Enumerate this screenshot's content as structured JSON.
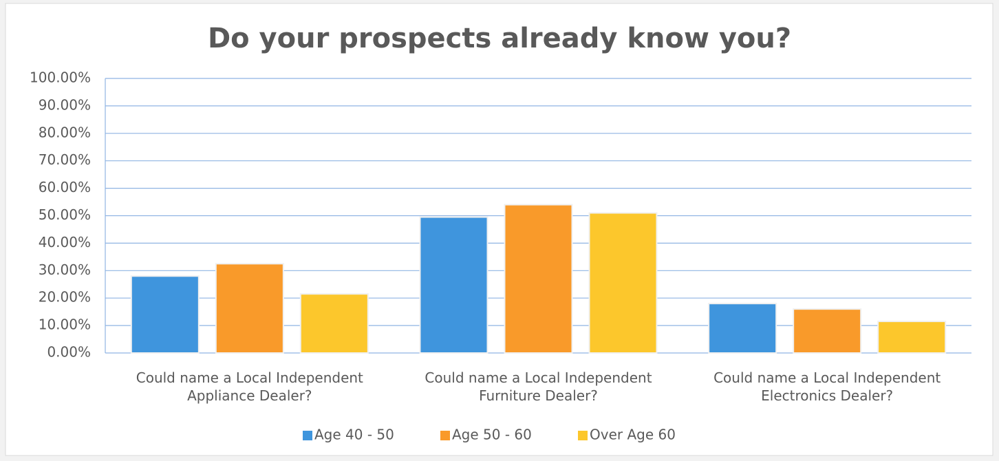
{
  "chart_data": {
    "type": "bar",
    "title": "Do your prospects already know you?",
    "categories": [
      "Could name a Local Independent Appliance Dealer?",
      "Could name a Local Independent Furniture Dealer?",
      "Could name a Local Independent Electronics Dealer?"
    ],
    "series": [
      {
        "name": "Age 40 - 50",
        "color": "#3f95dd",
        "values": [
          28,
          49.5,
          18
        ]
      },
      {
        "name": "Age 50 - 60",
        "color": "#f99a2a",
        "values": [
          32.5,
          54,
          16
        ]
      },
      {
        "name": "Over Age 60",
        "color": "#fcc72c",
        "values": [
          21.5,
          51,
          11.5
        ]
      }
    ],
    "ylim": [
      0,
      100
    ],
    "yticks": [
      {
        "value": 0,
        "label": "0.00%"
      },
      {
        "value": 10,
        "label": "10.00%"
      },
      {
        "value": 20,
        "label": "20.00%"
      },
      {
        "value": 30,
        "label": "30.00%"
      },
      {
        "value": 40,
        "label": "40.00%"
      },
      {
        "value": 50,
        "label": "50.00%"
      },
      {
        "value": 60,
        "label": "60.00%"
      },
      {
        "value": 70,
        "label": "70.00%"
      },
      {
        "value": 80,
        "label": "80.00%"
      },
      {
        "value": 90,
        "label": "90.00%"
      },
      {
        "value": 100,
        "label": "100.00%"
      }
    ],
    "grid": true,
    "legend": "bottom"
  }
}
